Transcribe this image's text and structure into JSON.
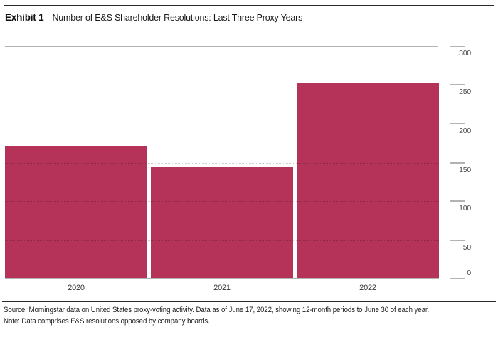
{
  "exhibit": {
    "label": "Exhibit 1",
    "title": "Number of E&S Shareholder Resolutions: Last Three Proxy Years"
  },
  "chart_data": {
    "type": "bar",
    "title": "Number of E&S Shareholder Resolutions: Last Three Proxy Years",
    "categories": [
      "2020",
      "2021",
      "2022"
    ],
    "values": [
      172,
      144,
      252
    ],
    "xlabel": "",
    "ylabel": "",
    "ylim": [
      0,
      300
    ],
    "yticks": [
      300,
      250,
      200,
      150,
      100,
      50,
      0
    ],
    "y_axis_position": "right",
    "grid": "horizontal, dotted minor lines, solid top and baseline",
    "legend": "none",
    "bar_color": "#b53259"
  },
  "footer": {
    "source": "Source: Morningstar data on United States proxy-voting activity. Data as of June 17, 2022, showing 12-month periods to June 30 of each year.",
    "note": "Note: Data comprises E&S resolutions opposed by company boards."
  },
  "colors": {
    "bar": "#b53259",
    "rule": "#2b2b2b",
    "axis_line": "#b3b3b3",
    "tick_label": "#4a4a4a"
  }
}
